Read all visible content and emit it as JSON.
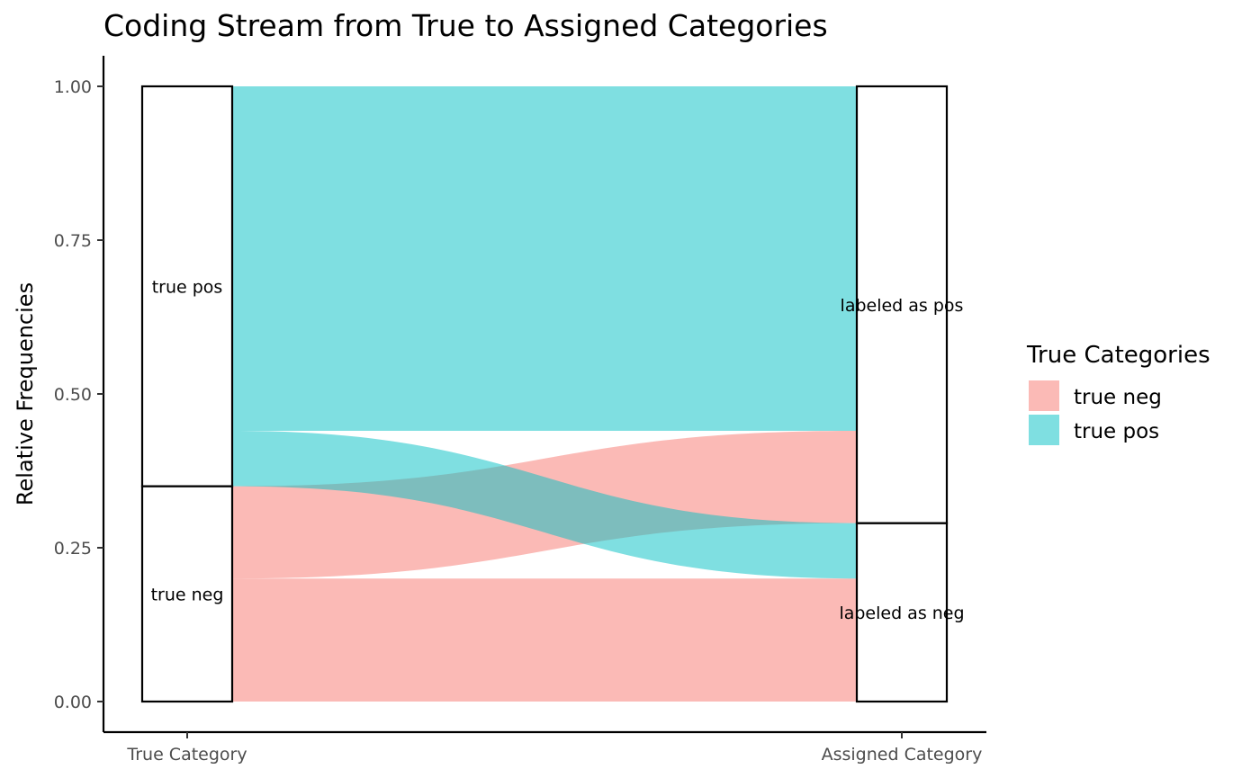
{
  "chart_data": {
    "type": "alluvial",
    "title": "Coding Stream from True to Assigned Categories",
    "ylabel": "Relative Frequencies",
    "xlabel": "",
    "ylim": [
      0,
      1
    ],
    "y_ticks": [
      "0.00",
      "0.25",
      "0.50",
      "0.75",
      "1.00"
    ],
    "axes": [
      "True Category",
      "Assigned Category"
    ],
    "strata": {
      "True Category": [
        {
          "label": "true neg",
          "value": 0.35
        },
        {
          "label": "true pos",
          "value": 0.65
        }
      ],
      "Assigned Category": [
        {
          "label": "labeled as neg",
          "value": 0.29
        },
        {
          "label": "labeled as pos",
          "value": 0.71
        }
      ]
    },
    "flows": [
      {
        "from": "true neg",
        "to": "labeled as neg",
        "value": 0.2,
        "fill": "true neg"
      },
      {
        "from": "true neg",
        "to": "labeled as pos",
        "value": 0.15,
        "fill": "true neg"
      },
      {
        "from": "true pos",
        "to": "labeled as neg",
        "value": 0.09,
        "fill": "true pos"
      },
      {
        "from": "true pos",
        "to": "labeled as pos",
        "value": 0.56,
        "fill": "true pos"
      }
    ],
    "legend": {
      "title": "True Categories",
      "position": "right",
      "items": [
        {
          "label": "true neg",
          "color": "#F8766D"
        },
        {
          "label": "true pos",
          "color": "#00BFC4"
        }
      ]
    },
    "grid": false
  }
}
